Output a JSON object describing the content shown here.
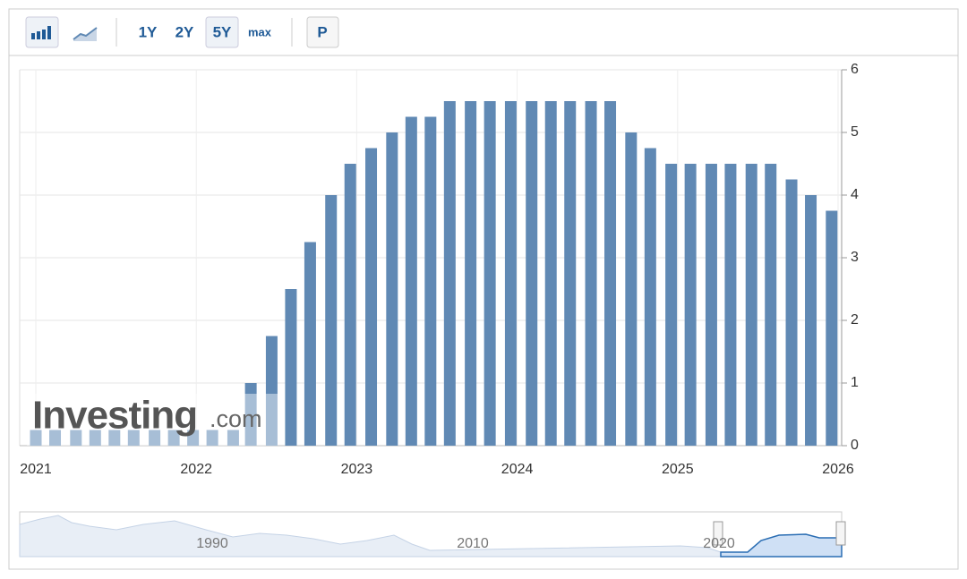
{
  "toolbar": {
    "buttons": [
      "1Y",
      "2Y",
      "5Y",
      "max",
      "P"
    ]
  },
  "watermark": {
    "brand": "Investing",
    "suffix": ".com"
  },
  "navigator": {
    "labels": [
      "1990",
      "2010",
      "2020"
    ]
  },
  "chart_data": {
    "type": "bar",
    "color": "#6089b4",
    "grid": true,
    "x": [
      2021.0,
      2021.12,
      2021.25,
      2021.37,
      2021.49,
      2021.61,
      2021.74,
      2021.86,
      2021.98,
      2022.1,
      2022.23,
      2022.34,
      2022.47,
      2022.59,
      2022.71,
      2022.84,
      2022.96,
      2023.09,
      2023.22,
      2023.34,
      2023.46,
      2023.58,
      2023.71,
      2023.83,
      2023.96,
      2024.09,
      2024.21,
      2024.33,
      2024.46,
      2024.58,
      2024.71,
      2024.83,
      2024.96,
      2025.08,
      2025.21,
      2025.33,
      2025.46,
      2025.58,
      2025.71,
      2025.83,
      2025.96
    ],
    "values": [
      0.25,
      0.25,
      0.25,
      0.25,
      0.25,
      0.25,
      0.25,
      0.25,
      0.25,
      0.25,
      0.25,
      1.0,
      1.75,
      2.5,
      3.25,
      4.0,
      4.5,
      4.75,
      5.0,
      5.25,
      5.25,
      5.5,
      5.5,
      5.5,
      5.5,
      5.5,
      5.5,
      5.5,
      5.5,
      5.5,
      5.0,
      4.75,
      4.5,
      4.5,
      4.5,
      4.5,
      4.5,
      4.5,
      4.25,
      4.0,
      3.75
    ],
    "xlim": [
      2021,
      2026
    ],
    "xticks": [
      2021,
      2022,
      2023,
      2024,
      2025,
      2026
    ],
    "ylim": [
      0,
      6
    ],
    "yticks": [
      0,
      1,
      2,
      3,
      4,
      5,
      6
    ]
  }
}
